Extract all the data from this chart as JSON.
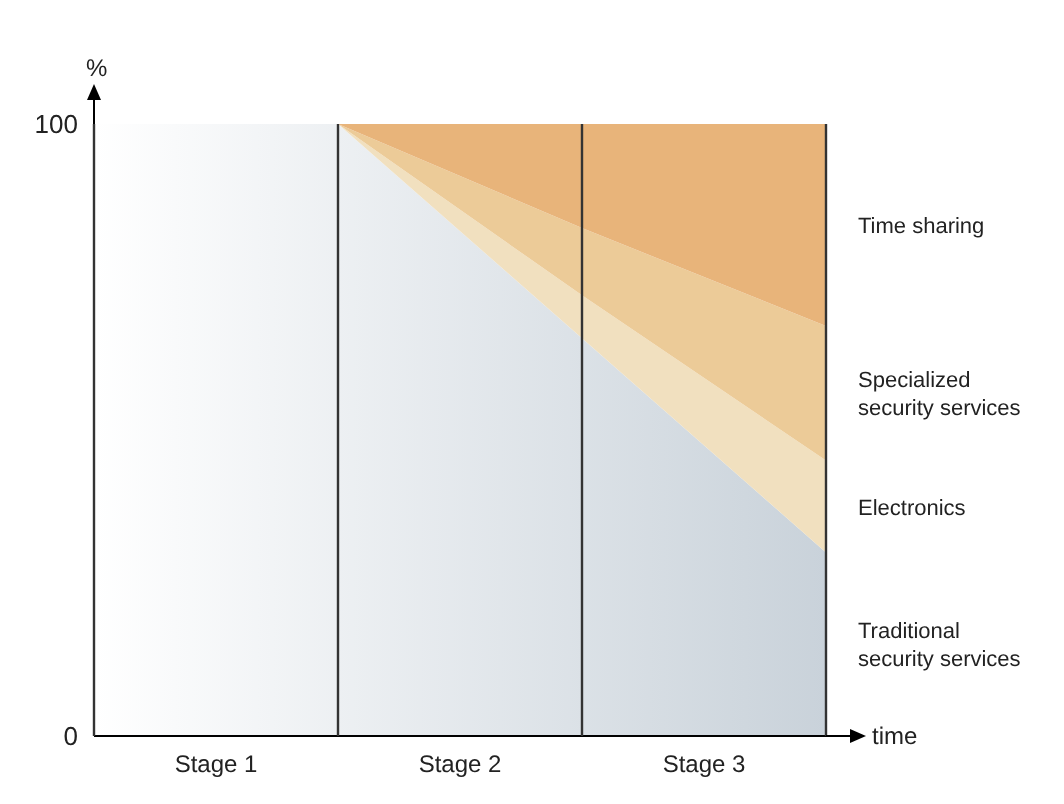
{
  "chart_data": {
    "type": "area",
    "stacked": true,
    "ylabel": "%",
    "xlabel": "time",
    "categories": [
      null,
      null,
      null,
      null
    ],
    "ylim": [
      0,
      100
    ],
    "yticks": [
      0,
      100
    ],
    "grid": "x",
    "series": [
      {
        "name": "Traditional security services",
        "color": "#c9d2da",
        "values": [
          100,
          100,
          65,
          30
        ]
      },
      {
        "name": "Electronics",
        "color": "#f1e0bf",
        "values": [
          0,
          0,
          7,
          15
        ]
      },
      {
        "name": "Specialized security services",
        "color": "#eccb98",
        "values": [
          0,
          0,
          11,
          22
        ]
      },
      {
        "name": "Time sharing",
        "color": "#e8b47a",
        "values": [
          0,
          0,
          17,
          33
        ]
      }
    ],
    "annotations": [
      "Stage 1",
      "Stage 2",
      "Stage 3"
    ]
  }
}
